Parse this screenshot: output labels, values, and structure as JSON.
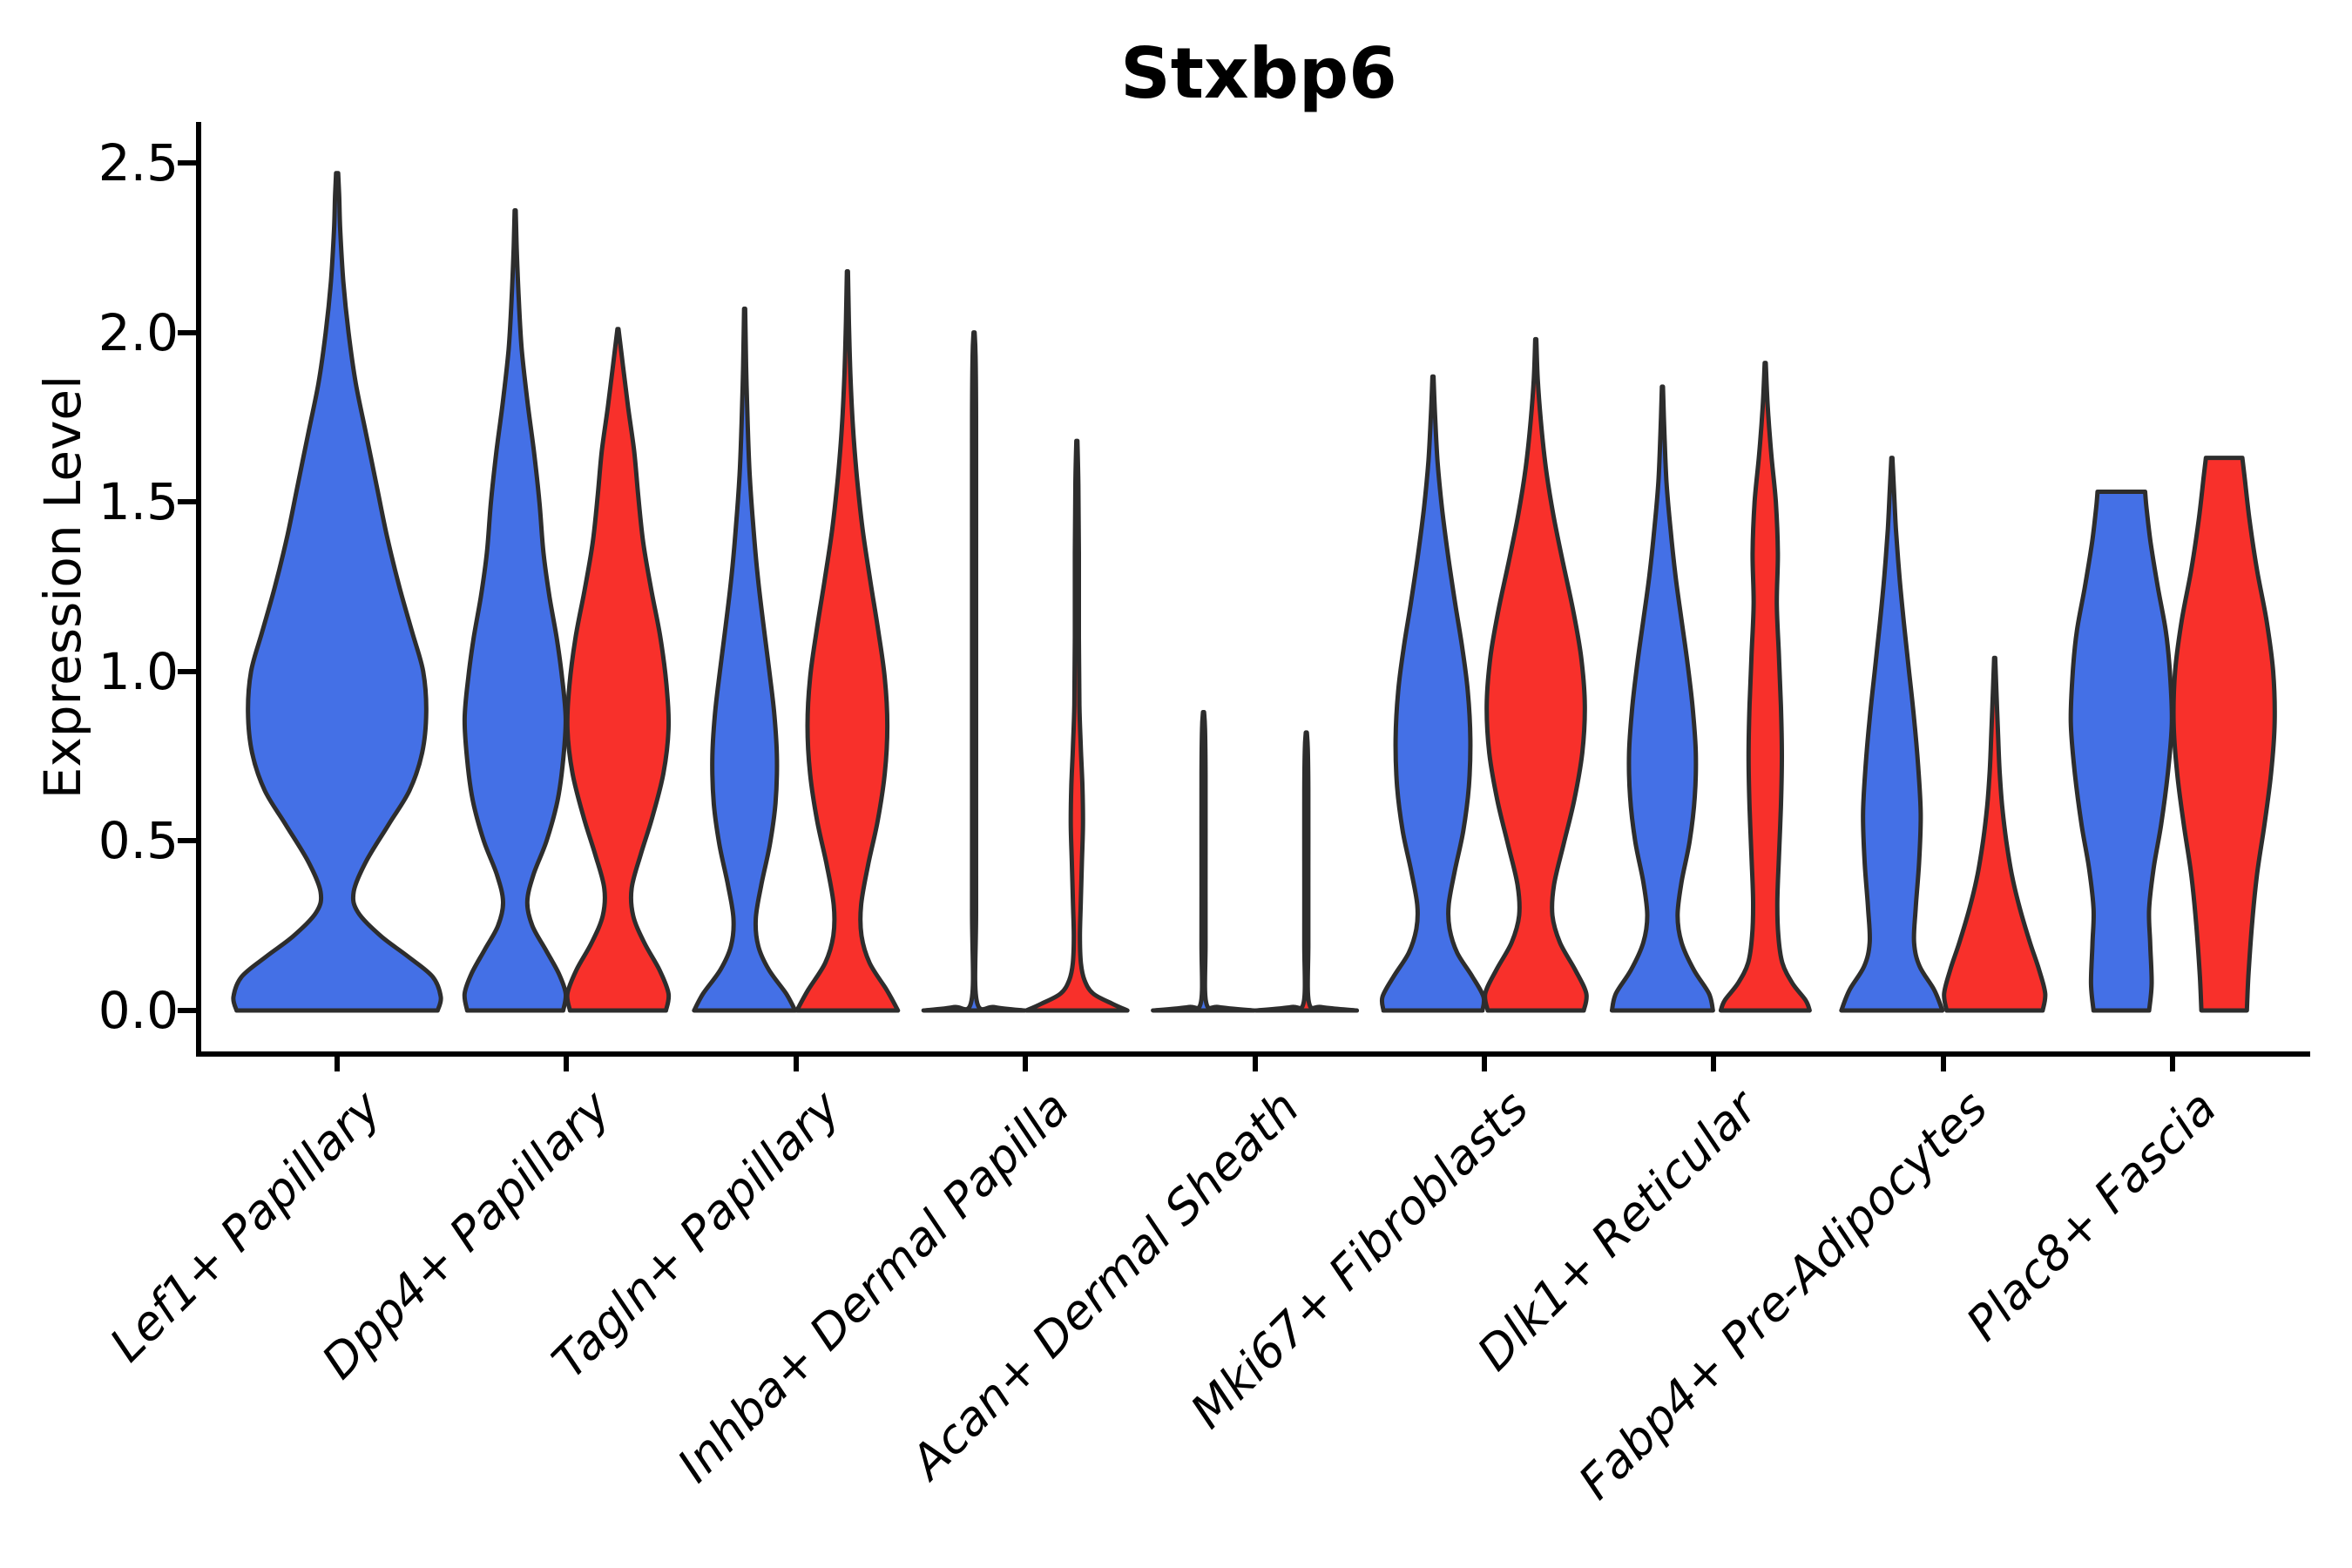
{
  "chart_data": {
    "type": "violin",
    "title": "Stxbp6",
    "ylabel": "Expression Level",
    "ylim": [
      0,
      2.5
    ],
    "y_ticks": [
      "0.0",
      "0.5",
      "1.0",
      "1.5",
      "2.0",
      "2.5"
    ],
    "y_tick_values": [
      0,
      0.5,
      1.0,
      1.5,
      2.0,
      2.5
    ],
    "categories": [
      "Lef1+ Papillary",
      "Dpp4+ Papillary",
      "Tagln+ Papillary",
      "Inhba+ Dermal Papilla",
      "Acan+ Dermal Sheath",
      "Mki67+ Fibroblasts",
      "Dlk1+ Reticular",
      "Fabp4+ Pre-Adipocytes",
      "Plac8+ Fascia"
    ],
    "colors": {
      "blue": "#4470E6",
      "red": "#F8302B",
      "outline": "#2d2d2d"
    },
    "grid": false,
    "legend": "none",
    "violins": [
      {
        "category": "Lef1+ Papillary",
        "color": "blue",
        "position": "single",
        "peak": 2.47,
        "profile": [
          [
            0,
            0.97
          ],
          [
            0.04,
            1.0
          ],
          [
            0.1,
            0.92
          ],
          [
            0.16,
            0.68
          ],
          [
            0.22,
            0.42
          ],
          [
            0.29,
            0.2
          ],
          [
            0.35,
            0.16
          ],
          [
            0.44,
            0.28
          ],
          [
            0.55,
            0.5
          ],
          [
            0.65,
            0.7
          ],
          [
            0.76,
            0.82
          ],
          [
            0.88,
            0.86
          ],
          [
            1.0,
            0.83
          ],
          [
            1.12,
            0.72
          ],
          [
            1.25,
            0.6
          ],
          [
            1.4,
            0.48
          ],
          [
            1.55,
            0.38
          ],
          [
            1.7,
            0.28
          ],
          [
            1.85,
            0.18
          ],
          [
            2.0,
            0.11
          ],
          [
            2.15,
            0.06
          ],
          [
            2.3,
            0.03
          ],
          [
            2.4,
            0.02
          ],
          [
            2.47,
            0.01
          ]
        ]
      },
      {
        "category": "Dpp4+ Papillary",
        "color": "blue",
        "position": "left",
        "peak": 2.36,
        "profile": [
          [
            0,
            0.95
          ],
          [
            0.05,
            1.0
          ],
          [
            0.11,
            0.86
          ],
          [
            0.18,
            0.6
          ],
          [
            0.25,
            0.34
          ],
          [
            0.32,
            0.24
          ],
          [
            0.4,
            0.36
          ],
          [
            0.5,
            0.62
          ],
          [
            0.62,
            0.84
          ],
          [
            0.74,
            0.95
          ],
          [
            0.86,
            1.0
          ],
          [
            0.98,
            0.93
          ],
          [
            1.1,
            0.82
          ],
          [
            1.22,
            0.68
          ],
          [
            1.35,
            0.56
          ],
          [
            1.5,
            0.48
          ],
          [
            1.65,
            0.37
          ],
          [
            1.8,
            0.24
          ],
          [
            1.95,
            0.13
          ],
          [
            2.1,
            0.07
          ],
          [
            2.25,
            0.03
          ],
          [
            2.36,
            0.01
          ]
        ]
      },
      {
        "category": "Dpp4+ Papillary",
        "color": "red",
        "position": "right",
        "peak": 2.01,
        "profile": [
          [
            0,
            0.95
          ],
          [
            0.05,
            1.0
          ],
          [
            0.12,
            0.82
          ],
          [
            0.2,
            0.52
          ],
          [
            0.28,
            0.3
          ],
          [
            0.36,
            0.27
          ],
          [
            0.46,
            0.45
          ],
          [
            0.57,
            0.68
          ],
          [
            0.7,
            0.9
          ],
          [
            0.83,
            1.0
          ],
          [
            0.96,
            0.96
          ],
          [
            1.1,
            0.84
          ],
          [
            1.24,
            0.66
          ],
          [
            1.38,
            0.5
          ],
          [
            1.52,
            0.4
          ],
          [
            1.65,
            0.32
          ],
          [
            1.78,
            0.2
          ],
          [
            1.9,
            0.1
          ],
          [
            2.01,
            0.01
          ]
        ]
      },
      {
        "category": "Tagln+ Papillary",
        "color": "blue",
        "position": "left",
        "peak": 2.07,
        "profile": [
          [
            0,
            1.0
          ],
          [
            0.05,
            0.82
          ],
          [
            0.12,
            0.48
          ],
          [
            0.19,
            0.27
          ],
          [
            0.27,
            0.22
          ],
          [
            0.37,
            0.33
          ],
          [
            0.49,
            0.5
          ],
          [
            0.61,
            0.61
          ],
          [
            0.74,
            0.64
          ],
          [
            0.87,
            0.59
          ],
          [
            1.0,
            0.49
          ],
          [
            1.14,
            0.37
          ],
          [
            1.28,
            0.26
          ],
          [
            1.43,
            0.17
          ],
          [
            1.58,
            0.1
          ],
          [
            1.73,
            0.06
          ],
          [
            1.9,
            0.03
          ],
          [
            2.07,
            0.01
          ]
        ]
      },
      {
        "category": "Tagln+ Papillary",
        "color": "red",
        "position": "right",
        "peak": 2.18,
        "profile": [
          [
            0,
            1.0
          ],
          [
            0.06,
            0.78
          ],
          [
            0.14,
            0.44
          ],
          [
            0.22,
            0.28
          ],
          [
            0.31,
            0.27
          ],
          [
            0.43,
            0.41
          ],
          [
            0.56,
            0.6
          ],
          [
            0.7,
            0.74
          ],
          [
            0.84,
            0.79
          ],
          [
            0.98,
            0.74
          ],
          [
            1.12,
            0.61
          ],
          [
            1.27,
            0.45
          ],
          [
            1.42,
            0.3
          ],
          [
            1.57,
            0.19
          ],
          [
            1.72,
            0.11
          ],
          [
            1.87,
            0.06
          ],
          [
            2.03,
            0.03
          ],
          [
            2.18,
            0.01
          ]
        ]
      },
      {
        "category": "Inhba+ Dermal Papilla",
        "color": "blue",
        "position": "left",
        "peak": 2.0,
        "profile": [
          [
            0,
            1.0
          ],
          [
            0.01,
            0.4
          ],
          [
            0.03,
            0.05
          ],
          [
            0.3,
            0.04
          ],
          [
            0.8,
            0.04
          ],
          [
            1.3,
            0.04
          ],
          [
            1.75,
            0.04
          ],
          [
            1.93,
            0.03
          ],
          [
            2.0,
            0.01
          ]
        ]
      },
      {
        "category": "Inhba+ Dermal Papilla",
        "color": "red",
        "position": "right",
        "peak": 1.68,
        "profile": [
          [
            0,
            1.0
          ],
          [
            0.02,
            0.7
          ],
          [
            0.05,
            0.32
          ],
          [
            0.09,
            0.15
          ],
          [
            0.14,
            0.08
          ],
          [
            0.22,
            0.06
          ],
          [
            0.33,
            0.08
          ],
          [
            0.44,
            0.1
          ],
          [
            0.55,
            0.12
          ],
          [
            0.66,
            0.11
          ],
          [
            0.77,
            0.08
          ],
          [
            0.9,
            0.05
          ],
          [
            1.1,
            0.04
          ],
          [
            1.35,
            0.04
          ],
          [
            1.55,
            0.03
          ],
          [
            1.68,
            0.01
          ]
        ]
      },
      {
        "category": "Acan+ Dermal Sheath",
        "color": "blue",
        "position": "left",
        "peak": 0.88,
        "profile": [
          [
            0,
            1.0
          ],
          [
            0.01,
            0.3
          ],
          [
            0.025,
            0.05
          ],
          [
            0.2,
            0.04
          ],
          [
            0.45,
            0.04
          ],
          [
            0.7,
            0.04
          ],
          [
            0.83,
            0.03
          ],
          [
            0.88,
            0.01
          ]
        ]
      },
      {
        "category": "Acan+ Dermal Sheath",
        "color": "red",
        "position": "right",
        "peak": 0.82,
        "profile": [
          [
            0,
            1.0
          ],
          [
            0.01,
            0.3
          ],
          [
            0.025,
            0.05
          ],
          [
            0.2,
            0.04
          ],
          [
            0.42,
            0.04
          ],
          [
            0.65,
            0.04
          ],
          [
            0.77,
            0.03
          ],
          [
            0.82,
            0.01
          ]
        ]
      },
      {
        "category": "Mki67+ Fibroblasts",
        "color": "blue",
        "position": "left",
        "peak": 1.87,
        "profile": [
          [
            0,
            0.98
          ],
          [
            0.04,
            1.0
          ],
          [
            0.1,
            0.78
          ],
          [
            0.17,
            0.48
          ],
          [
            0.24,
            0.33
          ],
          [
            0.31,
            0.31
          ],
          [
            0.41,
            0.43
          ],
          [
            0.53,
            0.6
          ],
          [
            0.66,
            0.71
          ],
          [
            0.8,
            0.74
          ],
          [
            0.94,
            0.69
          ],
          [
            1.07,
            0.58
          ],
          [
            1.2,
            0.44
          ],
          [
            1.34,
            0.3
          ],
          [
            1.48,
            0.18
          ],
          [
            1.62,
            0.09
          ],
          [
            1.76,
            0.04
          ],
          [
            1.87,
            0.01
          ]
        ]
      },
      {
        "category": "Mki67+ Fibroblasts",
        "color": "red",
        "position": "right",
        "peak": 1.98,
        "profile": [
          [
            0,
            0.95
          ],
          [
            0.05,
            1.0
          ],
          [
            0.12,
            0.78
          ],
          [
            0.2,
            0.48
          ],
          [
            0.28,
            0.33
          ],
          [
            0.37,
            0.36
          ],
          [
            0.49,
            0.55
          ],
          [
            0.62,
            0.76
          ],
          [
            0.76,
            0.92
          ],
          [
            0.9,
            0.97
          ],
          [
            1.04,
            0.9
          ],
          [
            1.18,
            0.74
          ],
          [
            1.32,
            0.54
          ],
          [
            1.46,
            0.35
          ],
          [
            1.6,
            0.2
          ],
          [
            1.74,
            0.1
          ],
          [
            1.86,
            0.04
          ],
          [
            1.98,
            0.01
          ]
        ]
      },
      {
        "category": "Dlk1+ Reticular",
        "color": "blue",
        "position": "left",
        "peak": 1.84,
        "profile": [
          [
            0,
            1.0
          ],
          [
            0.05,
            0.92
          ],
          [
            0.12,
            0.62
          ],
          [
            0.2,
            0.38
          ],
          [
            0.28,
            0.3
          ],
          [
            0.38,
            0.38
          ],
          [
            0.5,
            0.54
          ],
          [
            0.63,
            0.64
          ],
          [
            0.76,
            0.66
          ],
          [
            0.89,
            0.6
          ],
          [
            1.02,
            0.5
          ],
          [
            1.15,
            0.38
          ],
          [
            1.28,
            0.26
          ],
          [
            1.42,
            0.16
          ],
          [
            1.56,
            0.08
          ],
          [
            1.7,
            0.04
          ],
          [
            1.84,
            0.01
          ]
        ]
      },
      {
        "category": "Dlk1+ Reticular",
        "color": "red",
        "position": "right",
        "peak": 1.91,
        "profile": [
          [
            0,
            0.88
          ],
          [
            0.03,
            0.8
          ],
          [
            0.08,
            0.54
          ],
          [
            0.14,
            0.34
          ],
          [
            0.22,
            0.26
          ],
          [
            0.32,
            0.24
          ],
          [
            0.45,
            0.27
          ],
          [
            0.6,
            0.31
          ],
          [
            0.75,
            0.33
          ],
          [
            0.9,
            0.31
          ],
          [
            1.05,
            0.27
          ],
          [
            1.2,
            0.23
          ],
          [
            1.35,
            0.25
          ],
          [
            1.5,
            0.21
          ],
          [
            1.64,
            0.12
          ],
          [
            1.78,
            0.05
          ],
          [
            1.91,
            0.01
          ]
        ]
      },
      {
        "category": "Fabp4+ Pre-Adipocytes",
        "color": "blue",
        "position": "left",
        "peak": 1.63,
        "profile": [
          [
            0,
            1.0
          ],
          [
            0.06,
            0.84
          ],
          [
            0.13,
            0.55
          ],
          [
            0.2,
            0.44
          ],
          [
            0.3,
            0.47
          ],
          [
            0.44,
            0.54
          ],
          [
            0.58,
            0.57
          ],
          [
            0.72,
            0.52
          ],
          [
            0.86,
            0.44
          ],
          [
            1.0,
            0.34
          ],
          [
            1.14,
            0.24
          ],
          [
            1.28,
            0.15
          ],
          [
            1.42,
            0.08
          ],
          [
            1.54,
            0.04
          ],
          [
            1.63,
            0.01
          ]
        ]
      },
      {
        "category": "Fabp4+ Pre-Adipocytes",
        "color": "red",
        "position": "right",
        "peak": 1.04,
        "profile": [
          [
            0,
            0.95
          ],
          [
            0.05,
            1.0
          ],
          [
            0.12,
            0.88
          ],
          [
            0.2,
            0.7
          ],
          [
            0.3,
            0.5
          ],
          [
            0.4,
            0.34
          ],
          [
            0.5,
            0.23
          ],
          [
            0.6,
            0.15
          ],
          [
            0.7,
            0.1
          ],
          [
            0.8,
            0.07
          ],
          [
            0.92,
            0.04
          ],
          [
            1.04,
            0.01
          ]
        ]
      },
      {
        "category": "Plac8+ Fascia",
        "color": "blue",
        "position": "left",
        "peak": 1.53,
        "profile": [
          [
            0,
            0.55
          ],
          [
            0.08,
            0.6
          ],
          [
            0.2,
            0.57
          ],
          [
            0.3,
            0.55
          ],
          [
            0.42,
            0.64
          ],
          [
            0.55,
            0.79
          ],
          [
            0.7,
            0.92
          ],
          [
            0.85,
            1.0
          ],
          [
            1.0,
            0.96
          ],
          [
            1.12,
            0.88
          ],
          [
            1.25,
            0.72
          ],
          [
            1.38,
            0.58
          ],
          [
            1.48,
            0.5
          ],
          [
            1.53,
            0.47
          ]
        ]
      },
      {
        "category": "Plac8+ Fascia",
        "color": "red",
        "position": "right",
        "peak": 1.63,
        "profile": [
          [
            0,
            0.45
          ],
          [
            0.1,
            0.48
          ],
          [
            0.25,
            0.55
          ],
          [
            0.4,
            0.65
          ],
          [
            0.55,
            0.8
          ],
          [
            0.7,
            0.93
          ],
          [
            0.85,
            1.0
          ],
          [
            1.0,
            0.97
          ],
          [
            1.15,
            0.84
          ],
          [
            1.3,
            0.65
          ],
          [
            1.45,
            0.5
          ],
          [
            1.58,
            0.4
          ],
          [
            1.63,
            0.36
          ]
        ]
      }
    ]
  }
}
